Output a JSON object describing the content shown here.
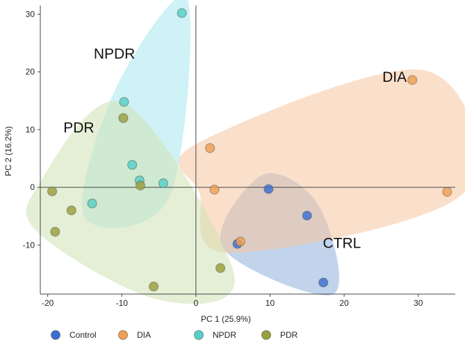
{
  "chart_data": {
    "type": "scatter",
    "title": "",
    "xlabel": "PC 1 (25.9%)",
    "ylabel": "PC 2 (16.2%)",
    "xlim": [
      -21,
      35
    ],
    "ylim": [
      -18.5,
      31.5
    ],
    "xticks": [
      -20,
      -10,
      0,
      10,
      20,
      30
    ],
    "yticks": [
      -10,
      0,
      10,
      20,
      30
    ],
    "series": [
      {
        "name": "Control",
        "label": "CTRL",
        "color": "#3a6fd0",
        "hull_color": "#8fb1dd",
        "points": [
          [
            9.8,
            -0.3
          ],
          [
            15.0,
            -4.9
          ],
          [
            5.6,
            -9.8
          ],
          [
            17.2,
            -16.5
          ]
        ]
      },
      {
        "name": "DIA",
        "label": "DIA",
        "color": "#f0a050",
        "hull_color": "#f6c4a0",
        "points": [
          [
            29.2,
            18.6
          ],
          [
            1.9,
            6.8
          ],
          [
            2.5,
            -0.4
          ],
          [
            6.0,
            -9.4
          ],
          [
            33.9,
            -0.8
          ]
        ]
      },
      {
        "name": "NPDR",
        "label": "NPDR",
        "color": "#56d0c6",
        "hull_color": "#a6e8ec",
        "points": [
          [
            -1.9,
            30.2
          ],
          [
            -9.7,
            14.8
          ],
          [
            -8.6,
            3.9
          ],
          [
            -7.6,
            1.2
          ],
          [
            -4.4,
            0.7
          ],
          [
            -14.0,
            -2.8
          ]
        ]
      },
      {
        "name": "PDR",
        "label": "PDR",
        "color": "#9aa03c",
        "hull_color": "#cfe1b4",
        "points": [
          [
            -9.8,
            12.0
          ],
          [
            -19.4,
            -0.7
          ],
          [
            -16.8,
            -4.0
          ],
          [
            -19.0,
            -7.7
          ],
          [
            -7.5,
            0.3
          ],
          [
            3.3,
            -14.0
          ],
          [
            -5.7,
            -17.2
          ]
        ]
      }
    ]
  }
}
